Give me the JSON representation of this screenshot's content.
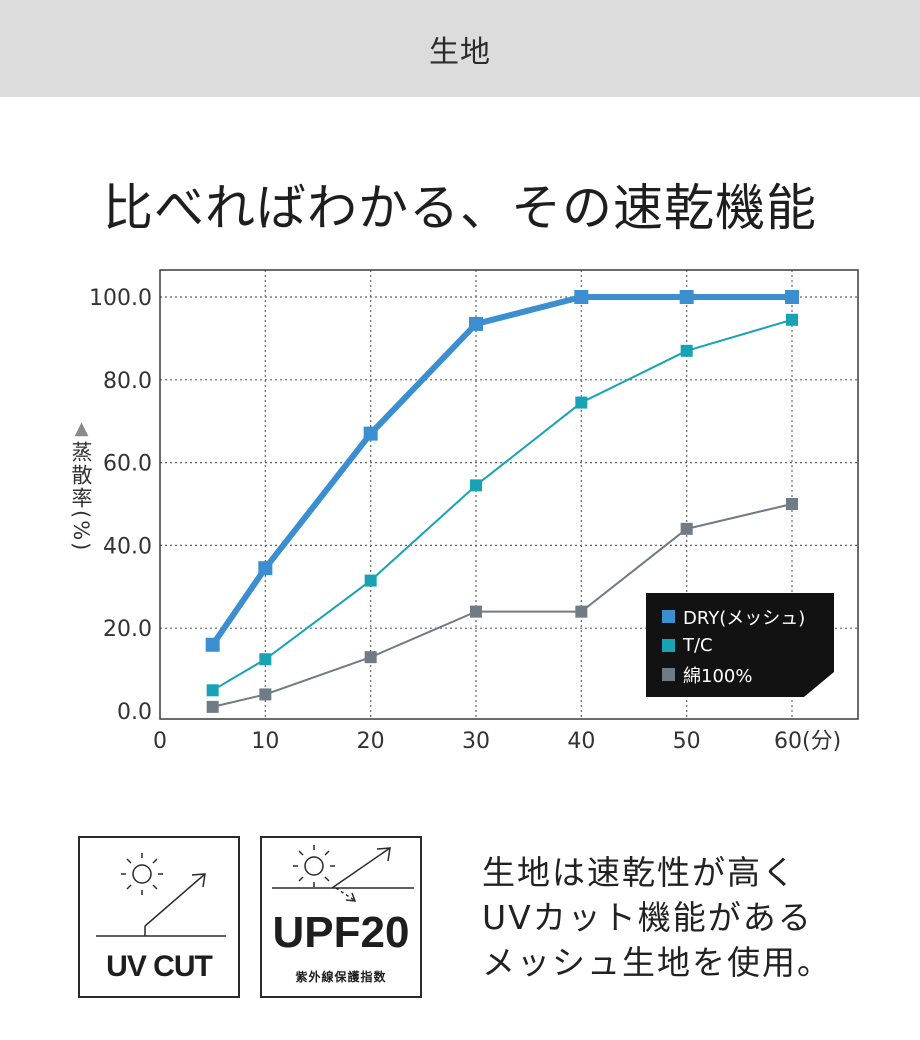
{
  "header": {
    "title": "生地"
  },
  "headline": "比べればわかる、その速乾機能",
  "chart_data": {
    "type": "line",
    "title": "",
    "xlabel": "",
    "x_unit": "(分)",
    "ylabel": "蒸散率(%)",
    "ylabel_marker": "▲",
    "xlim": [
      0,
      60
    ],
    "ylim": [
      0,
      100
    ],
    "x_ticks": [
      "0",
      "10",
      "20",
      "30",
      "40",
      "50",
      "60(分)"
    ],
    "y_ticks": [
      "0.0",
      "20.0",
      "40.0",
      "60.0",
      "80.0",
      "100.0"
    ],
    "grid": true,
    "legend_position": "bottom-right",
    "series": [
      {
        "name": "DRY(メッシュ)",
        "color": "#3b8fd0",
        "x": [
          5,
          10,
          20,
          30,
          40,
          50,
          60
        ],
        "y": [
          16,
          34.5,
          67,
          93.5,
          100,
          100,
          100
        ]
      },
      {
        "name": "T/C",
        "color": "#17a3b4",
        "x": [
          5,
          10,
          20,
          30,
          40,
          50,
          60
        ],
        "y": [
          5,
          12.5,
          31.5,
          54.5,
          74.5,
          87,
          94.5
        ]
      },
      {
        "name": "綿100%",
        "color": "#6f7b85",
        "x": [
          5,
          10,
          20,
          30,
          40,
          50,
          60
        ],
        "y": [
          1,
          4,
          13,
          24,
          24,
          44,
          50
        ]
      }
    ]
  },
  "badges": {
    "uv_cut": {
      "label": "UV CUT"
    },
    "upf": {
      "label": "UPF20",
      "sublabel": "紫外線保護指数"
    }
  },
  "description": [
    "生地は速乾性が高く",
    "UVカット機能がある",
    "メッシュ生地を使用。"
  ]
}
